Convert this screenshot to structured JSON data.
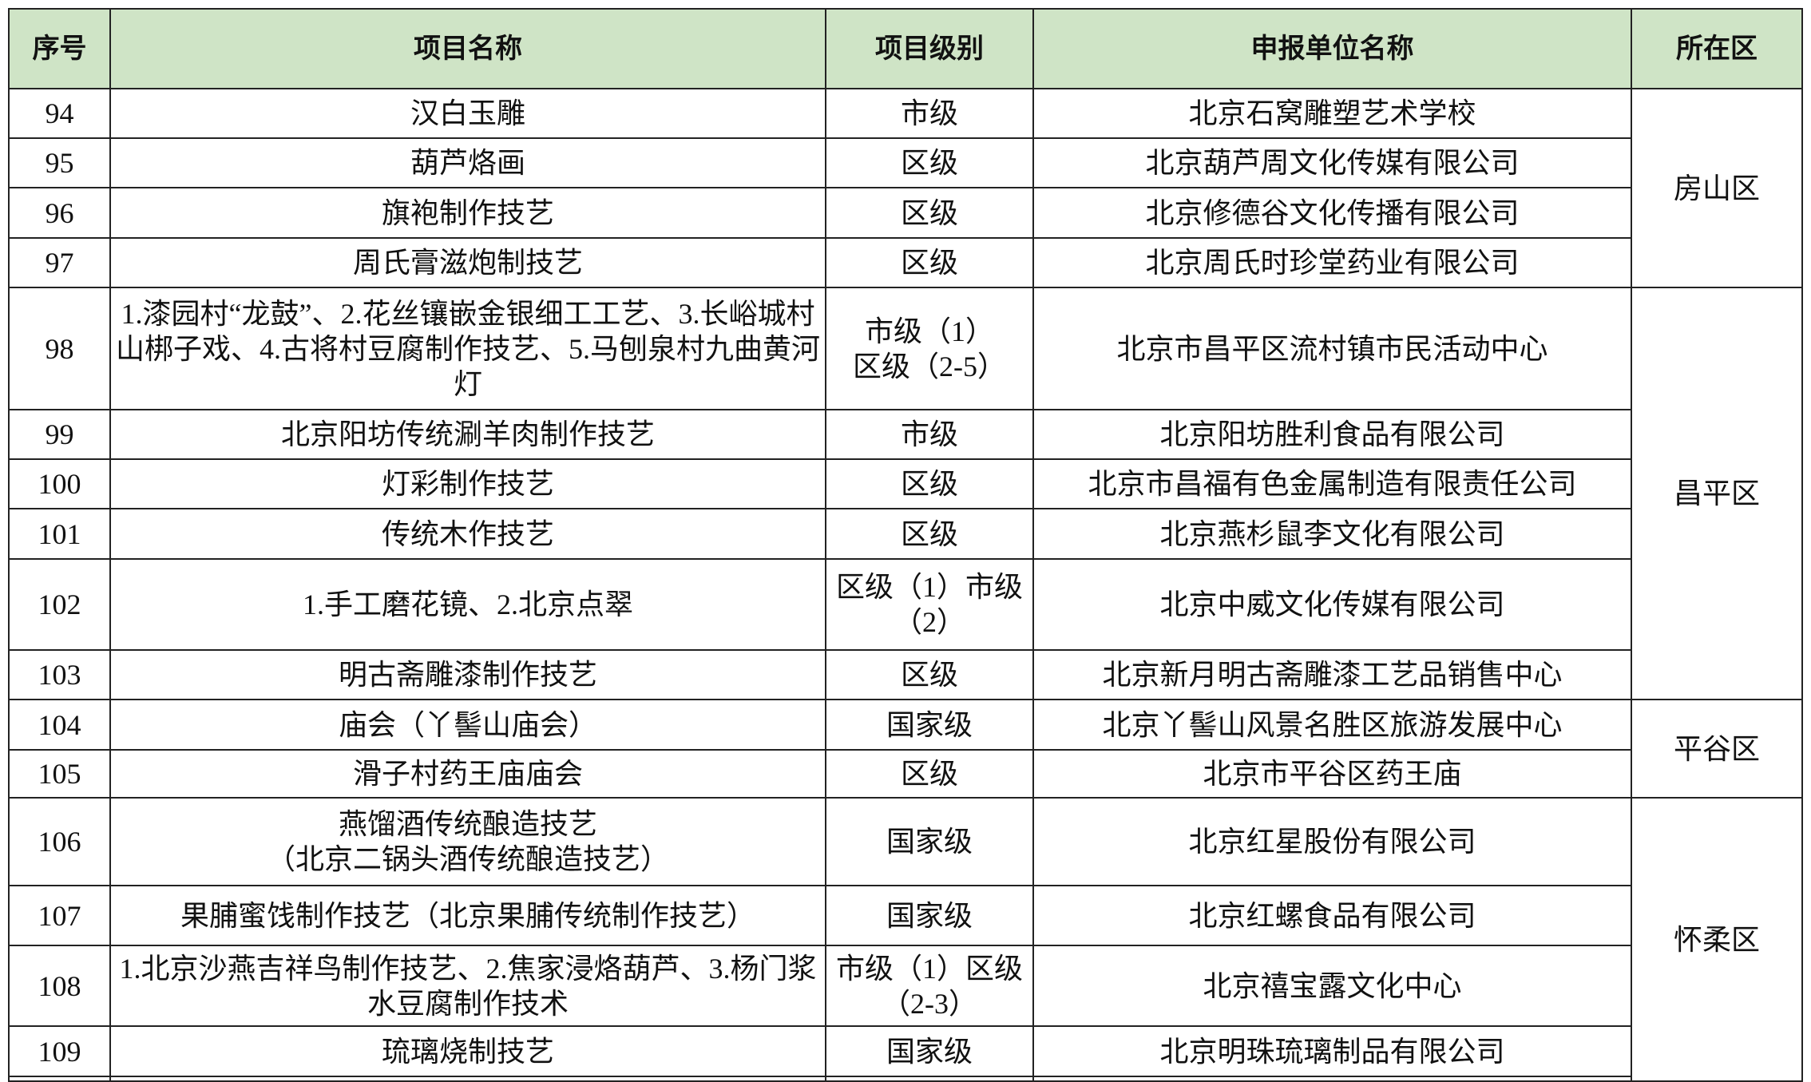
{
  "headers": [
    "序号",
    "项目名称",
    "项目级别",
    "申报单位名称",
    "所在区"
  ],
  "header_bg": "#cfe4c6",
  "rows": [
    {
      "no": "94",
      "name": "汉白玉雕",
      "level": "市级",
      "unit": "北京石窝雕塑艺术学校"
    },
    {
      "no": "95",
      "name": "葫芦烙画",
      "level": "区级",
      "unit": "北京葫芦周文化传媒有限公司"
    },
    {
      "no": "96",
      "name": "旗袍制作技艺",
      "level": "区级",
      "unit": "北京修德谷文化传播有限公司"
    },
    {
      "no": "97",
      "name": "周氏膏滋炮制技艺",
      "level": "区级",
      "unit": "北京周氏时珍堂药业有限公司"
    },
    {
      "no": "98",
      "name": "1.漆园村“龙鼓”、2.花丝镶嵌金银细工工艺、3.长峪城村山梆子戏、4.古将村豆腐制作技艺、5.马刨泉村九曲黄河灯",
      "level": "市级（1）\n区级（2-5）",
      "unit": "北京市昌平区流村镇市民活动中心"
    },
    {
      "no": "99",
      "name": "北京阳坊传统涮羊肉制作技艺",
      "level": "市级",
      "unit": "北京阳坊胜利食品有限公司"
    },
    {
      "no": "100",
      "name": "灯彩制作技艺",
      "level": "区级",
      "unit": "北京市昌福有色金属制造有限责任公司"
    },
    {
      "no": "101",
      "name": "传统木作技艺",
      "level": "区级",
      "unit": "北京燕杉鼠李文化有限公司"
    },
    {
      "no": "102",
      "name": "1.手工磨花镜、2.北京点翠",
      "level": "区级（1）市级（2）",
      "unit": "北京中威文化传媒有限公司"
    },
    {
      "no": "103",
      "name": "明古斋雕漆制作技艺",
      "level": "区级",
      "unit": "北京新月明古斋雕漆工艺品销售中心"
    },
    {
      "no": "104",
      "name": "庙会（丫髻山庙会）",
      "level": "国家级",
      "unit": "北京丫髻山风景名胜区旅游发展中心"
    },
    {
      "no": "105",
      "name": "滑子村药王庙庙会",
      "level": "区级",
      "unit": "北京市平谷区药王庙"
    },
    {
      "no": "106",
      "name": "燕馏酒传统酿造技艺\n（北京二锅头酒传统酿造技艺）",
      "level": "国家级",
      "unit": "北京红星股份有限公司"
    },
    {
      "no": "107",
      "name": "果脯蜜饯制作技艺（北京果脯传统制作技艺）",
      "level": "国家级",
      "unit": "北京红螺食品有限公司"
    },
    {
      "no": "108",
      "name": "1.北京沙燕吉祥鸟制作技艺、2.焦家浸烙葫芦、3.杨门浆水豆腐制作技术",
      "level": "市级（1）区级（2-3）",
      "unit": "北京禧宝露文化中心"
    },
    {
      "no": "109",
      "name": "琉璃烧制技艺",
      "level": "国家级",
      "unit": "北京明珠琉璃制品有限公司"
    }
  ],
  "districts": [
    "房山区",
    "昌平区",
    "平谷区",
    "怀柔区"
  ]
}
